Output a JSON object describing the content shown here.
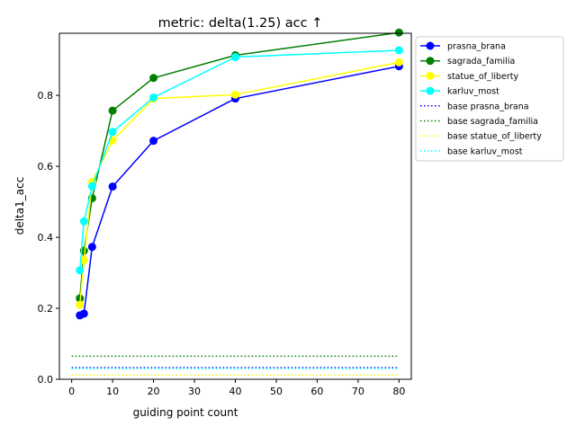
{
  "chart_data": {
    "type": "line",
    "title": "metric: delta(1.25) acc ↑",
    "xlabel": "guiding point count",
    "ylabel": "delta1_acc",
    "xlim": [
      -3,
      83
    ],
    "ylim": [
      0,
      0.975
    ],
    "xticks": [
      0,
      10,
      20,
      30,
      40,
      50,
      60,
      70,
      80
    ],
    "yticks": [
      0.0,
      0.2,
      0.4,
      0.6,
      0.8
    ],
    "ytick_labels": [
      "0.0",
      "0.2",
      "0.4",
      "0.6",
      "0.8"
    ],
    "grid": false,
    "legend_position": "outside-upper-right",
    "series": [
      {
        "name": "prasna_brana",
        "color": "#0000ff",
        "style": "solid-marker",
        "x": [
          2,
          3,
          5,
          10,
          20,
          40,
          80
        ],
        "y": [
          0.18,
          0.185,
          0.373,
          0.543,
          0.672,
          0.791,
          0.882
        ]
      },
      {
        "name": "sagrada_familia",
        "color": "#008000",
        "style": "solid-marker",
        "x": [
          2,
          3,
          5,
          10,
          20,
          40,
          80
        ],
        "y": [
          0.228,
          0.362,
          0.51,
          0.757,
          0.849,
          0.913,
          0.977
        ]
      },
      {
        "name": "statue_of_liberty",
        "color": "#ffff00",
        "style": "solid-marker",
        "x": [
          2,
          3,
          5,
          10,
          20,
          40,
          80
        ],
        "y": [
          0.21,
          0.336,
          0.556,
          0.673,
          0.791,
          0.802,
          0.893
        ]
      },
      {
        "name": "karluv_most",
        "color": "#00ffff",
        "style": "solid-marker",
        "x": [
          2,
          3,
          5,
          10,
          20,
          40,
          80
        ],
        "y": [
          0.307,
          0.445,
          0.544,
          0.697,
          0.794,
          0.908,
          0.927
        ]
      },
      {
        "name": "base prasna_brana",
        "color": "#0000ff",
        "style": "dotted",
        "x": [
          0,
          80
        ],
        "y": [
          0.033,
          0.033
        ]
      },
      {
        "name": "base sagrada_familia",
        "color": "#008000",
        "style": "dotted",
        "x": [
          0,
          80
        ],
        "y": [
          0.065,
          0.065
        ]
      },
      {
        "name": "base statue_of_liberty",
        "color": "#ffff00",
        "style": "dotted",
        "x": [
          0,
          80
        ],
        "y": [
          0.012,
          0.012
        ]
      },
      {
        "name": "base karluv_most",
        "color": "#00ffff",
        "style": "dotted",
        "x": [
          0,
          80
        ],
        "y": [
          0.03,
          0.03
        ]
      }
    ]
  }
}
